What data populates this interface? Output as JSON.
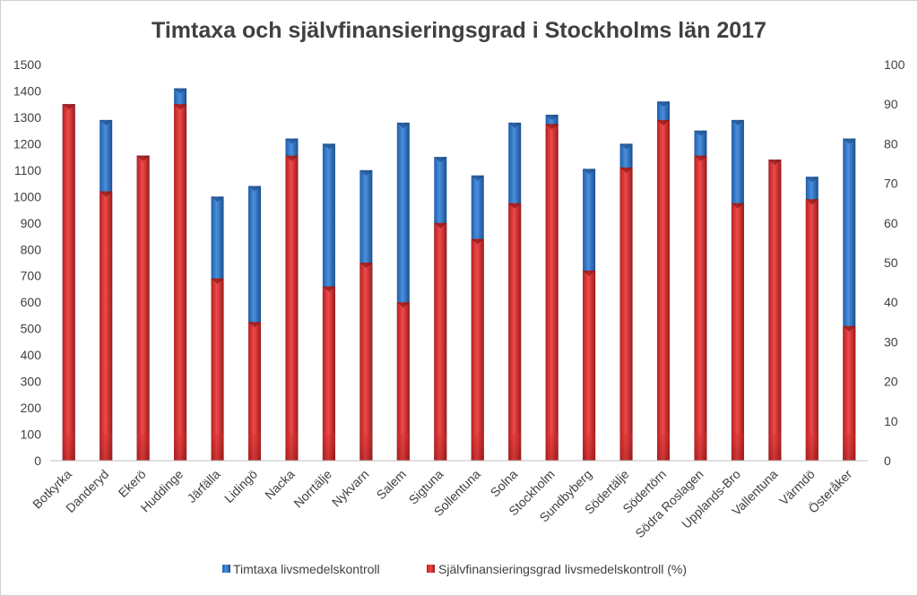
{
  "chart_data": {
    "type": "bar",
    "title": "Timtaxa och självfinansieringsgrad i Stockholms län 2017",
    "categories": [
      "Botkyrka",
      "Danderyd",
      "Ekerö",
      "Huddinge",
      "Järfälla",
      "Lidingö",
      "Nacka",
      "Norrtälje",
      "Nykvarn",
      "Salem",
      "Sigtuna",
      "Sollentuna",
      "Solna",
      "Stockholm",
      "Sundbyberg",
      "Södertälje",
      "Södertörn",
      "Södra Roslagen",
      "Upplands-Bro",
      "Vallentuna",
      "Värmdö",
      "Österåker"
    ],
    "series": [
      {
        "name": "Timtaxa livsmedelskontroll",
        "axis": "left",
        "color": "#2e75c8",
        "values": [
          1350,
          1290,
          1155,
          1410,
          1000,
          1040,
          1220,
          1200,
          1100,
          1280,
          1150,
          1080,
          1280,
          1310,
          1105,
          1200,
          1360,
          1250,
          1290,
          1140,
          1075,
          1220
        ]
      },
      {
        "name": "Självfinansieringsgrad livsmedelskontroll (%)",
        "axis": "right",
        "color": "#e03434",
        "values": [
          90,
          68,
          77,
          90,
          46,
          35,
          77,
          44,
          50,
          40,
          60,
          56,
          65,
          85,
          48,
          74,
          86,
          77,
          65,
          76,
          66,
          34
        ]
      }
    ],
    "y_left": {
      "min": 0,
      "max": 1500,
      "step": 100,
      "ticks": [
        "0",
        "100",
        "200",
        "300",
        "400",
        "500",
        "600",
        "700",
        "800",
        "900",
        "1000",
        "1100",
        "1200",
        "1300",
        "1400",
        "1500"
      ]
    },
    "y_right": {
      "min": 0,
      "max": 100,
      "step": 10,
      "ticks": [
        "0",
        "10",
        "20",
        "30",
        "40",
        "50",
        "60",
        "70",
        "80",
        "90",
        "100"
      ]
    },
    "grid": false,
    "legend_position": "bottom"
  }
}
